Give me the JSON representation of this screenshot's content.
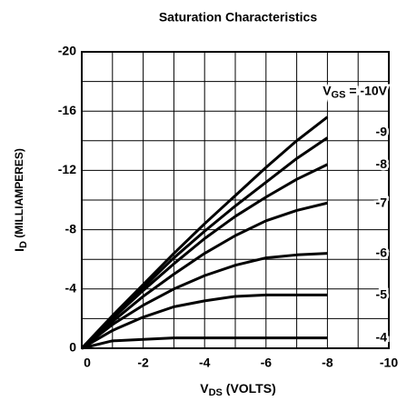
{
  "chart_data": {
    "type": "line",
    "title": "Saturation Characteristics",
    "x_label": {
      "symbol": "V",
      "subscript": "DS",
      "text": " (VOLTS)"
    },
    "y_label": {
      "symbol": "I",
      "subscript": "D",
      "text": " (MILLIAMPERES)"
    },
    "legend_prefix": {
      "symbol": "V",
      "subscript": "GS",
      "sep": " = "
    },
    "x": [
      0,
      -1,
      -2,
      -3,
      -4,
      -5,
      -6,
      -7,
      -8
    ],
    "series": [
      {
        "name": "-10V",
        "color": "#000000",
        "values": [
          0,
          -2.2,
          -4.3,
          -6.4,
          -8.4,
          -10.3,
          -12.2,
          -14.0,
          -15.6
        ]
      },
      {
        "name": "-9",
        "color": "#000000",
        "values": [
          0,
          -2.1,
          -4.1,
          -6.1,
          -7.9,
          -9.6,
          -11.2,
          -12.8,
          -14.2
        ]
      },
      {
        "name": "-8",
        "color": "#000000",
        "values": [
          0,
          -2.0,
          -3.9,
          -5.7,
          -7.4,
          -8.9,
          -10.2,
          -11.4,
          -12.4
        ]
      },
      {
        "name": "-7",
        "color": "#000000",
        "values": [
          0,
          -1.8,
          -3.5,
          -5.0,
          -6.4,
          -7.6,
          -8.6,
          -9.3,
          -9.8
        ]
      },
      {
        "name": "-6",
        "color": "#000000",
        "values": [
          0,
          -1.6,
          -2.9,
          -4.0,
          -4.9,
          -5.6,
          -6.1,
          -6.3,
          -6.4
        ]
      },
      {
        "name": "-5",
        "color": "#000000",
        "values": [
          0,
          -1.2,
          -2.1,
          -2.8,
          -3.2,
          -3.5,
          -3.6,
          -3.6,
          -3.6
        ]
      },
      {
        "name": "-4",
        "color": "#000000",
        "values": [
          0,
          -0.5,
          -0.6,
          -0.7,
          -0.7,
          -0.7,
          -0.7,
          -0.7,
          -0.7
        ]
      }
    ],
    "xlim": [
      0,
      -10
    ],
    "xticks": [
      0,
      -2,
      -4,
      -6,
      -8,
      -10
    ],
    "xminor": [
      -1,
      -3,
      -5,
      -7,
      -9
    ],
    "ylim": [
      0,
      -20
    ],
    "yticks": [
      0,
      -4,
      -8,
      -12,
      -16,
      -20
    ],
    "yminor": [
      -2,
      -6,
      -10,
      -14,
      -18
    ],
    "grid": true
  }
}
